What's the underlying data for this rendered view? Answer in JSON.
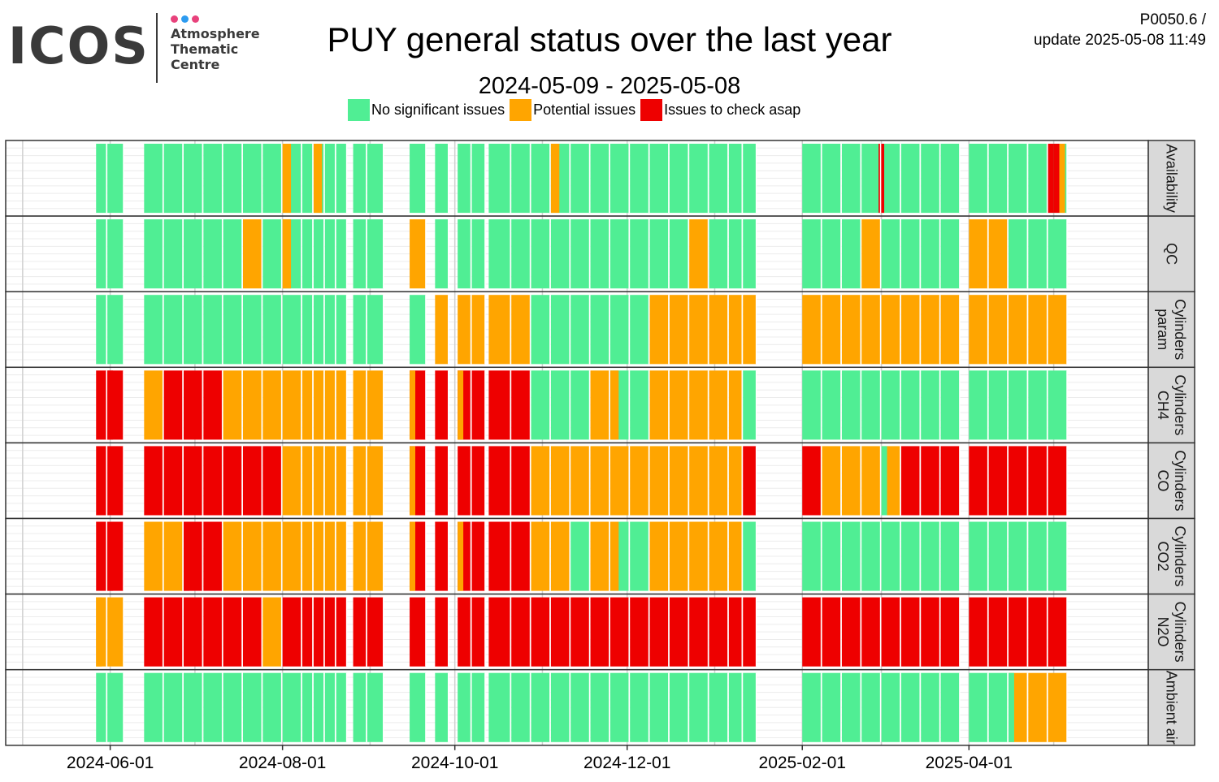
{
  "header": {
    "logo_text": "ICOS",
    "logo_sub": [
      "Atmosphere",
      "Thematic",
      "Centre"
    ],
    "title": "PUY general status over the last year",
    "subtitle": "2024-05-09 - 2025-05-08",
    "code_line1": "P0050.6 /",
    "code_line2": "update  2025-05-08 11:49"
  },
  "colors": {
    "ok": "#50ee94",
    "warn": "#ffa500",
    "bad": "#ee0000",
    "strip": "#d9d9d9",
    "logo_dots": [
      "#e8427c",
      "#2d9bf0",
      "#e8427c"
    ]
  },
  "chart_data": {
    "type": "heatmap",
    "title": "PUY general status over the last year",
    "subtitle": "2024-05-09 - 2025-05-08",
    "x_range": [
      "2024-05-09",
      "2025-05-08"
    ],
    "x_ticks": [
      "2024-06-01",
      "2024-08-01",
      "2024-10-01",
      "2024-12-01",
      "2025-02-01",
      "2025-04-01"
    ],
    "legend": [
      {
        "key": "g",
        "label": "No significant issues"
      },
      {
        "key": "o",
        "label": "Potential issues"
      },
      {
        "key": "r",
        "label": "Issues to check asap"
      }
    ],
    "legend_position": "top",
    "bins": [
      [
        "2024-05-27",
        "2024-05-30"
      ],
      [
        "2024-05-31",
        "2024-06-05"
      ],
      [
        "2024-06-13",
        "2024-06-19"
      ],
      [
        "2024-06-20",
        "2024-06-26"
      ],
      [
        "2024-06-27",
        "2024-07-03"
      ],
      [
        "2024-07-04",
        "2024-07-10"
      ],
      [
        "2024-07-11",
        "2024-07-17"
      ],
      [
        "2024-07-18",
        "2024-07-24"
      ],
      [
        "2024-07-25",
        "2024-07-31"
      ],
      [
        "2024-08-01",
        "2024-08-07"
      ],
      [
        "2024-08-08",
        "2024-08-11"
      ],
      [
        "2024-08-12",
        "2024-08-15"
      ],
      [
        "2024-08-16",
        "2024-08-19"
      ],
      [
        "2024-08-20",
        "2024-08-23"
      ],
      [
        "2024-08-26",
        "2024-08-30"
      ],
      [
        "2024-08-31",
        "2024-09-05"
      ],
      [
        "2024-09-15",
        "2024-09-20"
      ],
      [
        "2024-09-24",
        "2024-09-28"
      ],
      [
        "2024-10-02",
        "2024-10-06"
      ],
      [
        "2024-10-07",
        "2024-10-11"
      ],
      [
        "2024-10-13",
        "2024-10-20"
      ],
      [
        "2024-10-21",
        "2024-10-27"
      ],
      [
        "2024-10-28",
        "2024-11-03"
      ],
      [
        "2024-11-04",
        "2024-11-10"
      ],
      [
        "2024-11-11",
        "2024-11-17"
      ],
      [
        "2024-11-18",
        "2024-11-24"
      ],
      [
        "2024-11-25",
        "2024-12-01"
      ],
      [
        "2024-12-02",
        "2024-12-08"
      ],
      [
        "2024-12-09",
        "2024-12-15"
      ],
      [
        "2024-12-16",
        "2024-12-22"
      ],
      [
        "2024-12-23",
        "2024-12-29"
      ],
      [
        "2024-12-30",
        "2025-01-05"
      ],
      [
        "2025-01-06",
        "2025-01-10"
      ],
      [
        "2025-01-11",
        "2025-01-15"
      ],
      [
        "2025-02-01",
        "2025-02-07"
      ],
      [
        "2025-02-08",
        "2025-02-14"
      ],
      [
        "2025-02-15",
        "2025-02-21"
      ],
      [
        "2025-02-22",
        "2025-02-28"
      ],
      [
        "2025-03-01",
        "2025-03-07"
      ],
      [
        "2025-03-08",
        "2025-03-14"
      ],
      [
        "2025-03-15",
        "2025-03-21"
      ],
      [
        "2025-03-22",
        "2025-03-28"
      ],
      [
        "2025-04-01",
        "2025-04-07"
      ],
      [
        "2025-04-08",
        "2025-04-14"
      ],
      [
        "2025-04-15",
        "2025-04-21"
      ],
      [
        "2025-04-22",
        "2025-04-28"
      ],
      [
        "2025-04-29",
        "2025-05-05"
      ]
    ],
    "rows": [
      {
        "label": "Availability",
        "values": [
          "g",
          "g",
          "g",
          "g",
          "g",
          "g",
          "g",
          "g",
          "g",
          "g",
          "g",
          "g",
          "g",
          "g",
          "g",
          "g",
          "g",
          "g",
          "g",
          "g",
          "g",
          "g",
          "g",
          "g",
          "g",
          "g",
          "g",
          "g",
          "g",
          "g",
          "g",
          "g",
          "g",
          "g",
          "g",
          "g",
          "g",
          "g",
          "g",
          "g",
          "g",
          "g",
          "g",
          "g",
          "g",
          "g",
          "g"
        ],
        "overrides": [
          {
            "from": "2024-08-01",
            "to": "2024-08-04",
            "v": "o"
          },
          {
            "from": "2024-08-12",
            "to": "2024-08-15",
            "v": "o"
          },
          {
            "from": "2024-11-04",
            "to": "2024-11-07",
            "v": "o"
          },
          {
            "from": "2025-02-28",
            "to": "2025-03-02",
            "v": "r"
          },
          {
            "from": "2025-04-29",
            "to": "2025-05-01",
            "v": "r"
          },
          {
            "from": "2025-05-01",
            "to": "2025-05-03",
            "v": "r"
          },
          {
            "from": "2025-05-03",
            "to": "2025-05-05",
            "v": "o"
          }
        ]
      },
      {
        "label": "QC",
        "values": [
          "g",
          "g",
          "g",
          "g",
          "g",
          "g",
          "g",
          "o",
          "g",
          "g",
          "g",
          "g",
          "g",
          "g",
          "g",
          "g",
          "o",
          "g",
          "g",
          "g",
          "g",
          "g",
          "g",
          "g",
          "g",
          "g",
          "g",
          "g",
          "g",
          "g",
          "o",
          "g",
          "g",
          "g",
          "g",
          "g",
          "g",
          "o",
          "g",
          "g",
          "g",
          "g",
          "o",
          "o",
          "g",
          "g",
          "g"
        ],
        "overrides": [
          {
            "from": "2024-08-01",
            "to": "2024-08-04",
            "v": "o"
          }
        ]
      },
      {
        "label": "Cylinders param",
        "values": [
          "g",
          "g",
          "g",
          "g",
          "g",
          "g",
          "g",
          "g",
          "g",
          "g",
          "g",
          "g",
          "g",
          "g",
          "g",
          "g",
          "g",
          "o",
          "o",
          "o",
          "o",
          "o",
          "g",
          "g",
          "g",
          "g",
          "g",
          "g",
          "o",
          "o",
          "o",
          "o",
          "o",
          "o",
          "o",
          "o",
          "o",
          "o",
          "o",
          "o",
          "o",
          "o",
          "o",
          "o",
          "o",
          "o",
          "o"
        ],
        "overrides": []
      },
      {
        "label": "Cylinders CH4",
        "values": [
          "r",
          "r",
          "o",
          "r",
          "r",
          "r",
          "o",
          "o",
          "o",
          "o",
          "o",
          "o",
          "o",
          "o",
          "o",
          "o",
          "r",
          "r",
          "r",
          "r",
          "r",
          "r",
          "g",
          "g",
          "g",
          "o",
          "g",
          "g",
          "o",
          "o",
          "o",
          "o",
          "o",
          "g",
          "g",
          "g",
          "g",
          "g",
          "g",
          "g",
          "g",
          "g",
          "g",
          "g",
          "g",
          "g",
          "g"
        ],
        "overrides": [
          {
            "from": "2024-05-31",
            "to": "2024-06-02",
            "v": "r"
          },
          {
            "from": "2024-09-15",
            "to": "2024-09-17",
            "v": "o"
          },
          {
            "from": "2024-10-02",
            "to": "2024-10-04",
            "v": "o"
          },
          {
            "from": "2024-11-25",
            "to": "2024-11-28",
            "v": "o"
          }
        ]
      },
      {
        "label": "Cylinders CO",
        "values": [
          "r",
          "r",
          "r",
          "r",
          "r",
          "r",
          "r",
          "r",
          "r",
          "o",
          "o",
          "o",
          "o",
          "o",
          "o",
          "o",
          "r",
          "r",
          "r",
          "r",
          "r",
          "r",
          "o",
          "o",
          "o",
          "o",
          "o",
          "o",
          "o",
          "o",
          "o",
          "o",
          "o",
          "r",
          "r",
          "o",
          "o",
          "o",
          "o",
          "r",
          "r",
          "r",
          "r",
          "r",
          "r",
          "r",
          "r"
        ],
        "overrides": [
          {
            "from": "2024-09-15",
            "to": "2024-09-17",
            "v": "o"
          },
          {
            "from": "2025-03-01",
            "to": "2025-03-03",
            "v": "g"
          }
        ]
      },
      {
        "label": "Cylinders CO2",
        "values": [
          "r",
          "r",
          "o",
          "o",
          "r",
          "r",
          "o",
          "o",
          "o",
          "o",
          "o",
          "o",
          "o",
          "o",
          "o",
          "o",
          "r",
          "r",
          "r",
          "r",
          "r",
          "r",
          "o",
          "o",
          "g",
          "o",
          "g",
          "g",
          "o",
          "o",
          "o",
          "o",
          "o",
          "g",
          "g",
          "g",
          "g",
          "g",
          "g",
          "g",
          "g",
          "g",
          "g",
          "g",
          "g",
          "g",
          "g"
        ],
        "overrides": [
          {
            "from": "2024-05-31",
            "to": "2024-06-02",
            "v": "r"
          },
          {
            "from": "2024-06-27",
            "to": "2024-06-29",
            "v": "r"
          },
          {
            "from": "2024-09-15",
            "to": "2024-09-17",
            "v": "o"
          },
          {
            "from": "2024-10-02",
            "to": "2024-10-04",
            "v": "o"
          },
          {
            "from": "2024-11-25",
            "to": "2024-11-28",
            "v": "o"
          }
        ]
      },
      {
        "label": "Cylinders N2O",
        "values": [
          "o",
          "o",
          "r",
          "r",
          "r",
          "r",
          "r",
          "r",
          "o",
          "r",
          "r",
          "r",
          "r",
          "r",
          "r",
          "r",
          "r",
          "r",
          "r",
          "r",
          "r",
          "r",
          "r",
          "r",
          "r",
          "r",
          "r",
          "r",
          "r",
          "r",
          "r",
          "r",
          "r",
          "r",
          "r",
          "r",
          "r",
          "r",
          "r",
          "r",
          "r",
          "r",
          "r",
          "r",
          "r",
          "r",
          "r"
        ],
        "overrides": [
          {
            "from": "2024-05-27",
            "to": "2024-05-29",
            "v": "o"
          }
        ]
      },
      {
        "label": "Ambient air",
        "values": [
          "g",
          "g",
          "g",
          "g",
          "g",
          "g",
          "g",
          "g",
          "g",
          "g",
          "g",
          "g",
          "g",
          "g",
          "g",
          "g",
          "g",
          "g",
          "g",
          "g",
          "g",
          "g",
          "g",
          "g",
          "g",
          "g",
          "g",
          "g",
          "g",
          "g",
          "g",
          "g",
          "g",
          "g",
          "g",
          "g",
          "g",
          "g",
          "g",
          "g",
          "g",
          "g",
          "g",
          "g",
          "o",
          "o",
          "o"
        ],
        "overrides": [
          {
            "from": "2025-04-15",
            "to": "2025-04-17",
            "v": "g"
          }
        ]
      }
    ],
    "row_labels": [
      [
        "Availability"
      ],
      [
        "QC"
      ],
      [
        "Cylinders",
        "param"
      ],
      [
        "Cylinders",
        "CH4"
      ],
      [
        "Cylinders",
        "CO"
      ],
      [
        "Cylinders",
        "CO2"
      ],
      [
        "Cylinders",
        "N2O"
      ],
      [
        "Ambient air"
      ]
    ],
    "grid": true
  }
}
